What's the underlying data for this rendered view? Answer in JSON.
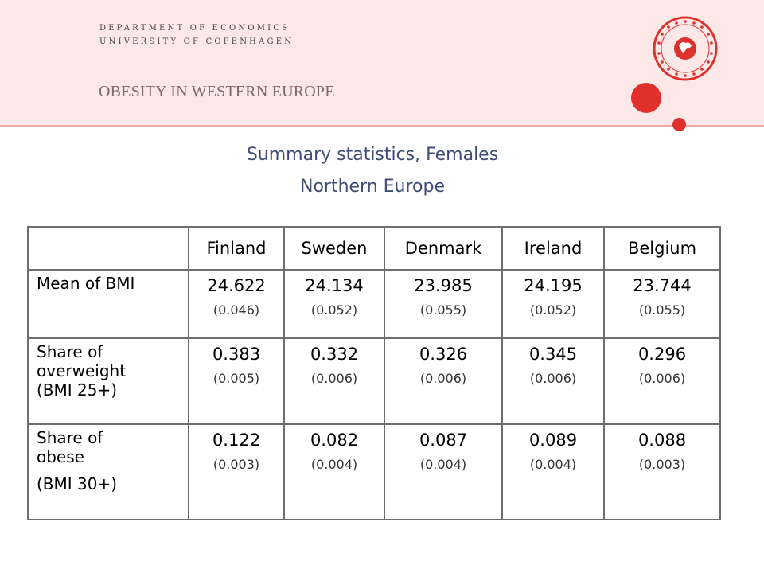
{
  "header": {
    "institution_line1": "DEPARTMENT OF ECONOMICS",
    "institution_line2": "UNIVERSITY OF COPENHAGEN",
    "deck_title": "OBESITY IN WESTERN EUROPE",
    "brand_color": "#e0302b",
    "band_color": "#fbe8e7"
  },
  "slide": {
    "subtitle_line1": "Summary statistics, Females",
    "subtitle_line2": "Northern Europe"
  },
  "table": {
    "columns": [
      "Finland",
      "Sweden",
      "Denmark",
      "Ireland",
      "Belgium"
    ],
    "rows": [
      {
        "label": "Mean of BMI",
        "values": [
          "24.622",
          "24.134",
          "23.985",
          "24.195",
          "23.744"
        ],
        "ses": [
          "(0.046)",
          "(0.052)",
          "(0.055)",
          "(0.052)",
          "(0.055)"
        ]
      },
      {
        "label_lines": [
          "Share of",
          "overweight",
          "(BMI 25+)"
        ],
        "values": [
          "0.383",
          "0.332",
          "0.326",
          "0.345",
          "0.296"
        ],
        "ses": [
          "(0.005)",
          "(0.006)",
          "(0.006)",
          "(0.006)",
          "(0.006)"
        ]
      },
      {
        "label_lines": [
          "Share of",
          "obese",
          "(BMI 30+)"
        ],
        "values": [
          "0.122",
          "0.082",
          "0.087",
          "0.089",
          "0.088"
        ],
        "ses": [
          "(0.003)",
          "(0.004)",
          "(0.004)",
          "(0.004)",
          "(0.003)"
        ]
      }
    ]
  }
}
